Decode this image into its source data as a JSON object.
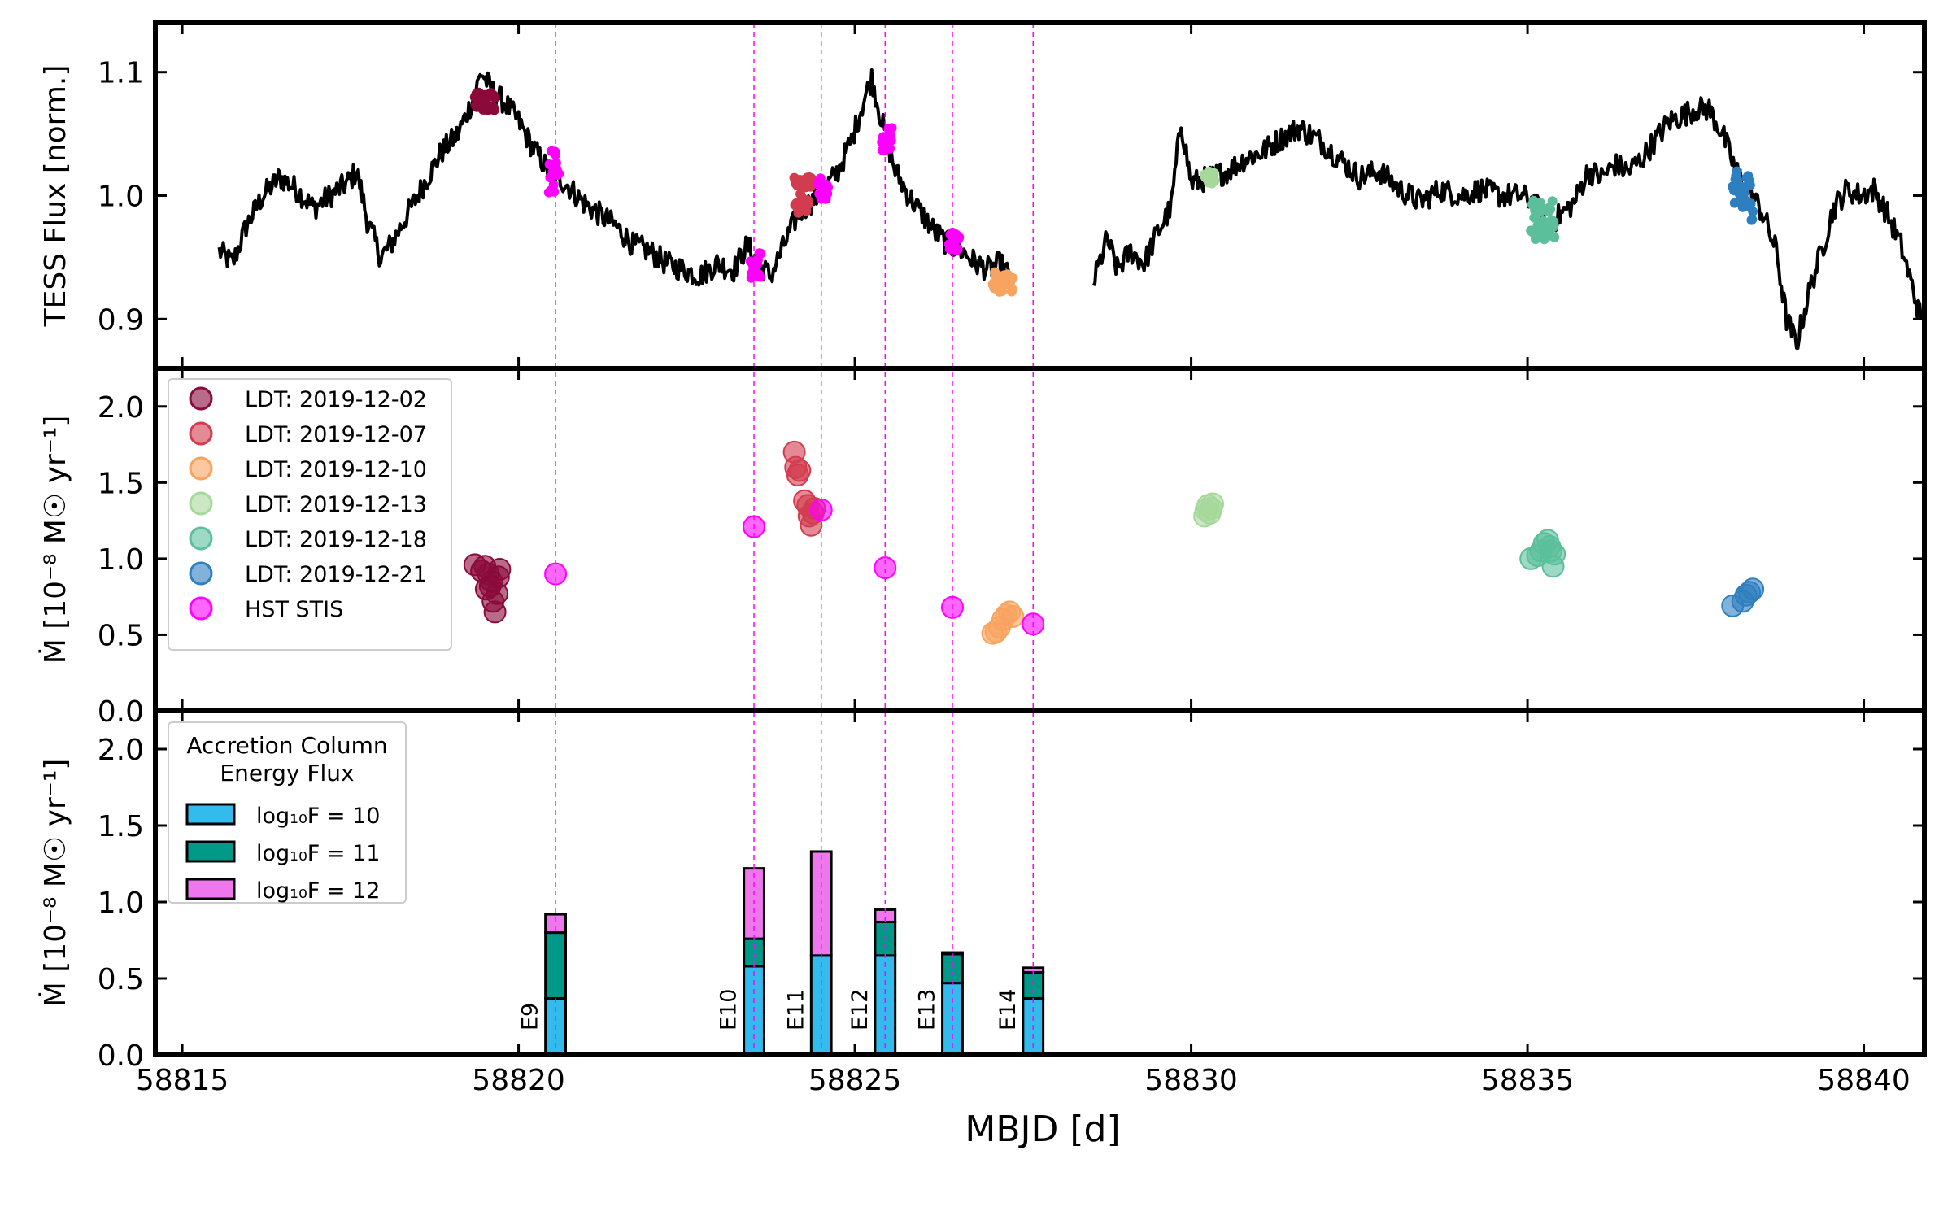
{
  "figure": {
    "xlabel": "MBJD [d]"
  },
  "chart_data": [
    {
      "type": "line",
      "panel": "top",
      "ylabel": "TESS Flux [norm.]",
      "ylim": [
        0.86,
        1.14
      ],
      "yticks": [
        0.9,
        1.0,
        1.1
      ],
      "xlim": [
        58814.6,
        58840.9
      ],
      "xticks": [
        58815,
        58820,
        58825,
        58830,
        58835,
        58840
      ],
      "lightcurve_color": "#000000",
      "lightcurve_knots": [
        [
          58815.55,
          0.955
        ],
        [
          58815.75,
          0.945
        ],
        [
          58815.95,
          0.975
        ],
        [
          58816.2,
          1.0
        ],
        [
          58816.45,
          1.015
        ],
        [
          58816.7,
          1.005
        ],
        [
          58816.95,
          0.99
        ],
        [
          58817.2,
          1.0
        ],
        [
          58817.45,
          1.01
        ],
        [
          58817.6,
          1.02
        ],
        [
          58817.75,
          0.98
        ],
        [
          58817.95,
          0.95
        ],
        [
          58818.1,
          0.96
        ],
        [
          58818.35,
          0.985
        ],
        [
          58818.6,
          1.01
        ],
        [
          58818.85,
          1.035
        ],
        [
          58819.1,
          1.05
        ],
        [
          58819.3,
          1.075
        ],
        [
          58819.45,
          1.1
        ],
        [
          58819.6,
          1.085
        ],
        [
          58819.8,
          1.075
        ],
        [
          58820.0,
          1.06
        ],
        [
          58820.2,
          1.04
        ],
        [
          58820.45,
          1.02
        ],
        [
          58820.7,
          1.01
        ],
        [
          58820.95,
          0.995
        ],
        [
          58821.2,
          0.985
        ],
        [
          58821.45,
          0.975
        ],
        [
          58821.7,
          0.96
        ],
        [
          58821.95,
          0.955
        ],
        [
          58822.2,
          0.945
        ],
        [
          58822.45,
          0.94
        ],
        [
          58822.7,
          0.935
        ],
        [
          58822.95,
          0.945
        ],
        [
          58823.2,
          0.94
        ],
        [
          58823.4,
          0.96
        ],
        [
          58823.55,
          0.945
        ],
        [
          58823.75,
          0.935
        ],
        [
          58823.95,
          0.96
        ],
        [
          58824.15,
          0.985
        ],
        [
          58824.35,
          0.995
        ],
        [
          58824.55,
          1.005
        ],
        [
          58824.75,
          1.02
        ],
        [
          58824.95,
          1.045
        ],
        [
          58825.15,
          1.08
        ],
        [
          58825.25,
          1.095
        ],
        [
          58825.4,
          1.06
        ],
        [
          58825.6,
          1.02
        ],
        [
          58825.8,
          1.0
        ],
        [
          58826.0,
          0.985
        ],
        [
          58826.2,
          0.97
        ],
        [
          58826.4,
          0.96
        ],
        [
          58826.6,
          0.955
        ],
        [
          58826.8,
          0.945
        ],
        [
          58827.0,
          0.94
        ],
        [
          58827.15,
          0.945
        ],
        [
          58827.3,
          0.935
        ],
        null,
        [
          58828.55,
          0.93
        ],
        [
          58828.75,
          0.965
        ],
        [
          58828.9,
          0.94
        ],
        [
          58829.1,
          0.955
        ],
        [
          58829.3,
          0.945
        ],
        [
          58829.5,
          0.97
        ],
        [
          58829.7,
          0.99
        ],
        [
          58829.85,
          1.06
        ],
        [
          58830.0,
          1.01
        ],
        [
          58830.3,
          1.015
        ],
        [
          58830.55,
          1.02
        ],
        [
          58830.8,
          1.03
        ],
        [
          58831.05,
          1.035
        ],
        [
          58831.3,
          1.045
        ],
        [
          58831.6,
          1.055
        ],
        [
          58831.9,
          1.045
        ],
        [
          58832.2,
          1.03
        ],
        [
          58832.5,
          1.015
        ],
        [
          58832.8,
          1.02
        ],
        [
          58833.1,
          1.005
        ],
        [
          58833.4,
          0.995
        ],
        [
          58833.7,
          1.005
        ],
        [
          58834.0,
          1.0
        ],
        [
          58834.3,
          1.005
        ],
        [
          58834.6,
          1.0
        ],
        [
          58834.9,
          1.0
        ],
        [
          58835.1,
          0.995
        ],
        [
          58835.3,
          0.975
        ],
        [
          58835.5,
          0.985
        ],
        [
          58835.7,
          0.995
        ],
        [
          58835.9,
          1.02
        ],
        [
          58836.1,
          1.015
        ],
        [
          58836.3,
          1.025
        ],
        [
          58836.5,
          1.02
        ],
        [
          58836.7,
          1.03
        ],
        [
          58836.9,
          1.045
        ],
        [
          58837.1,
          1.06
        ],
        [
          58837.3,
          1.065
        ],
        [
          58837.5,
          1.07
        ],
        [
          58837.7,
          1.07
        ],
        [
          58837.9,
          1.05
        ],
        [
          58838.1,
          1.02
        ],
        [
          58838.3,
          1.005
        ],
        [
          58838.5,
          0.985
        ],
        [
          58838.7,
          0.955
        ],
        [
          58838.85,
          0.9
        ],
        [
          58839.0,
          0.88
        ],
        [
          58839.2,
          0.925
        ],
        [
          58839.4,
          0.96
        ],
        [
          58839.55,
          0.99
        ],
        [
          58839.75,
          1.005
        ],
        [
          58839.95,
          1.0
        ],
        [
          58840.15,
          1.005
        ],
        [
          58840.35,
          0.985
        ],
        [
          58840.55,
          0.96
        ],
        [
          58840.7,
          0.93
        ],
        [
          58840.85,
          0.9
        ]
      ],
      "colored_segments": [
        {
          "color": "#8b0a3a",
          "x0": 58819.35,
          "x1": 58819.65,
          "y": 1.077,
          "spread": 0.008
        },
        {
          "color": "#ff00ff",
          "x0": 58820.45,
          "x1": 58820.6,
          "y": 1.02,
          "spread": 0.018
        },
        {
          "color": "#ff00ff",
          "x0": 58823.45,
          "x1": 58823.6,
          "y": 0.945,
          "spread": 0.012
        },
        {
          "color": "#d23c4f",
          "x0": 58824.1,
          "x1": 58824.35,
          "y": 1.0,
          "spread": 0.015
        },
        {
          "color": "#ff00ff",
          "x0": 58824.45,
          "x1": 58824.6,
          "y": 1.005,
          "spread": 0.01
        },
        {
          "color": "#ff00ff",
          "x0": 58825.4,
          "x1": 58825.55,
          "y": 1.045,
          "spread": 0.01
        },
        {
          "color": "#ff00ff",
          "x0": 58826.4,
          "x1": 58826.55,
          "y": 0.963,
          "spread": 0.008
        },
        {
          "color": "#f8a35f",
          "x0": 58827.05,
          "x1": 58827.35,
          "y": 0.93,
          "spread": 0.008
        },
        {
          "color": "#a6d89c",
          "x0": 58830.2,
          "x1": 58830.35,
          "y": 1.013,
          "spread": 0.008
        },
        {
          "color": "#5cbf9c",
          "x0": 58835.05,
          "x1": 58835.4,
          "y": 0.98,
          "spread": 0.016
        },
        {
          "color": "#2e7fc0",
          "x0": 58838.05,
          "x1": 58838.35,
          "y": 1.0,
          "spread": 0.02
        }
      ]
    },
    {
      "type": "scatter",
      "panel": "middle",
      "ylabel": "Ṁ [10⁻⁸ M☉ yr⁻¹]",
      "ylim": [
        0.0,
        2.25
      ],
      "yticks": [
        0.0,
        0.5,
        1.0,
        1.5,
        2.0
      ],
      "legend_position": "top-left",
      "series": [
        {
          "name": "LDT: 2019-12-02",
          "color": "#8b0a3a",
          "points": [
            [
              58819.35,
              0.96
            ],
            [
              58819.45,
              0.92
            ],
            [
              58819.5,
              0.95
            ],
            [
              58819.55,
              0.9
            ],
            [
              58819.58,
              0.82
            ],
            [
              58819.6,
              0.85
            ],
            [
              58819.62,
              0.72
            ],
            [
              58819.65,
              0.65
            ],
            [
              58819.68,
              0.77
            ],
            [
              58819.7,
              0.88
            ],
            [
              58819.72,
              0.93
            ],
            [
              58819.52,
              0.8
            ]
          ]
        },
        {
          "name": "LDT: 2019-12-07",
          "color": "#d23c4f",
          "points": [
            [
              58824.1,
              1.7
            ],
            [
              58824.12,
              1.6
            ],
            [
              58824.15,
              1.55
            ],
            [
              58824.18,
              1.58
            ],
            [
              58824.25,
              1.38
            ],
            [
              58824.3,
              1.35
            ],
            [
              58824.32,
              1.28
            ],
            [
              58824.35,
              1.22
            ],
            [
              58824.38,
              1.3
            ],
            [
              58824.4,
              1.33
            ]
          ]
        },
        {
          "name": "LDT: 2019-12-10",
          "color": "#f8a35f",
          "points": [
            [
              58827.05,
              0.51
            ],
            [
              58827.1,
              0.52
            ],
            [
              58827.15,
              0.55
            ],
            [
              58827.2,
              0.6
            ],
            [
              58827.25,
              0.63
            ],
            [
              58827.3,
              0.65
            ],
            [
              58827.35,
              0.62
            ]
          ]
        },
        {
          "name": "LDT: 2019-12-13",
          "color": "#a6d89c",
          "points": [
            [
              58830.2,
              1.28
            ],
            [
              58830.22,
              1.32
            ],
            [
              58830.25,
              1.35
            ],
            [
              58830.28,
              1.3
            ],
            [
              58830.3,
              1.33
            ],
            [
              58830.32,
              1.36
            ]
          ]
        },
        {
          "name": "LDT: 2019-12-18",
          "color": "#5cbf9c",
          "points": [
            [
              58835.05,
              1.0
            ],
            [
              58835.15,
              1.02
            ],
            [
              58835.2,
              1.05
            ],
            [
              58835.25,
              1.1
            ],
            [
              58835.3,
              1.12
            ],
            [
              58835.33,
              1.08
            ],
            [
              58835.35,
              1.05
            ],
            [
              58835.38,
              0.95
            ],
            [
              58835.4,
              1.03
            ]
          ]
        },
        {
          "name": "LDT: 2019-12-21",
          "color": "#2e7fc0",
          "points": [
            [
              58838.05,
              0.69
            ],
            [
              58838.2,
              0.72
            ],
            [
              58838.25,
              0.76
            ],
            [
              58838.3,
              0.78
            ],
            [
              58838.35,
              0.8
            ]
          ]
        },
        {
          "name": "HST STIS",
          "color": "#ff00ff",
          "points": [
            [
              58820.55,
              0.9
            ],
            [
              58823.5,
              1.21
            ],
            [
              58824.5,
              1.32
            ],
            [
              58825.45,
              0.94
            ],
            [
              58826.45,
              0.68
            ],
            [
              58827.65,
              0.57
            ]
          ]
        }
      ]
    },
    {
      "type": "bar",
      "panel": "bottom",
      "ylabel": "Ṁ [10⁻⁸ M☉ yr⁻¹]",
      "ylim": [
        0.0,
        2.25
      ],
      "yticks": [
        0.0,
        0.5,
        1.0,
        1.5,
        2.0
      ],
      "legend_title": [
        "Accretion Column",
        "Energy Flux"
      ],
      "legend_position": "top-left",
      "bar_width": 0.3,
      "series": [
        {
          "name": "log₁₀F = 10",
          "color": "#33bbee"
        },
        {
          "name": "log₁₀F = 11",
          "color": "#009988"
        },
        {
          "name": "log₁₀F = 12",
          "color": "#ee77ee"
        }
      ],
      "categories": [
        "E9",
        "E10",
        "E11",
        "E12",
        "E13",
        "E14"
      ],
      "x": [
        58820.55,
        58823.5,
        58824.5,
        58825.45,
        58826.45,
        58827.65
      ],
      "stacks": [
        [
          0.37,
          0.43,
          0.12
        ],
        [
          0.58,
          0.18,
          0.46
        ],
        [
          0.65,
          0.0,
          0.68
        ],
        [
          0.65,
          0.22,
          0.08
        ],
        [
          0.47,
          0.19,
          0.01
        ],
        [
          0.37,
          0.17,
          0.03
        ]
      ]
    }
  ],
  "event_lines": {
    "color": "#ff00ff",
    "x": [
      58820.55,
      58823.5,
      58824.5,
      58825.45,
      58826.45,
      58827.65
    ]
  }
}
